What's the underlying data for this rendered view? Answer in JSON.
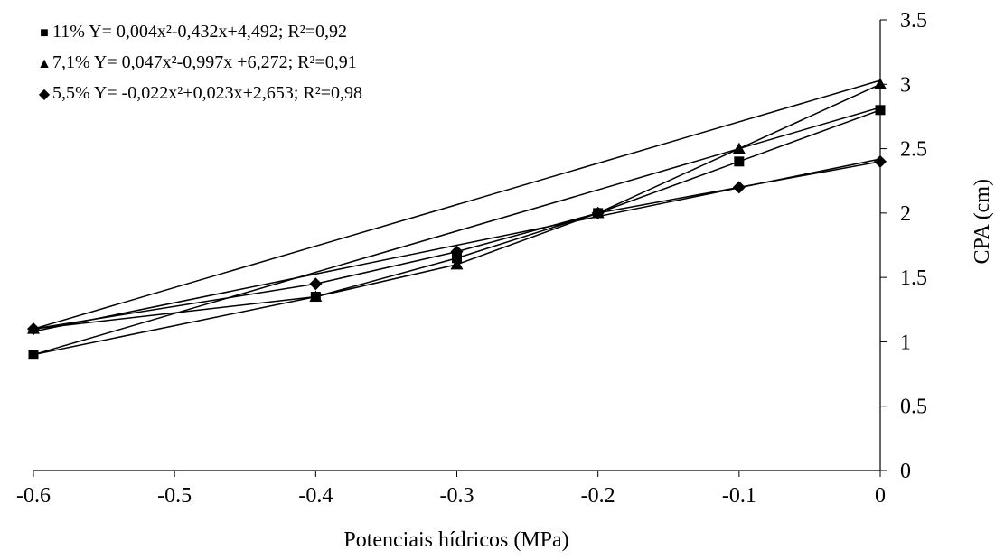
{
  "chart_data": {
    "type": "line",
    "x": [
      -0.6,
      -0.4,
      -0.3,
      -0.2,
      -0.1,
      0
    ],
    "x_ticks": [
      "-0.6",
      "-0.5",
      "-0.4",
      "-0.3",
      "-0.2",
      "-0.1",
      "0"
    ],
    "y_ticks": [
      "0",
      "0.5",
      "1",
      "1.5",
      "2",
      "2.5",
      "3",
      "3.5"
    ],
    "xlim": [
      -0.6,
      0
    ],
    "ylim": [
      0,
      3.5
    ],
    "xlabel": "Potenciais hídricos (MPa)",
    "ylabel": "CPA (cm)",
    "grid": false,
    "legend_position": "top-left",
    "series": [
      {
        "name": "11%",
        "marker": "square",
        "values": [
          0.9,
          1.35,
          1.65,
          2.0,
          2.4,
          2.8
        ],
        "equation": "11% Y= 0,004x²-0,432x+4,492; R²=0,92"
      },
      {
        "name": "7,1%",
        "marker": "triangle",
        "values": [
          1.1,
          1.35,
          1.6,
          2.0,
          2.5,
          3.0
        ],
        "equation": "7,1% Y= 0,047x²-0,997x +6,272; R²=0,91"
      },
      {
        "name": "5,5%",
        "marker": "diamond",
        "values": [
          1.1,
          1.45,
          1.7,
          2.0,
          2.2,
          2.4
        ],
        "equation": "5,5% Y= -0,022x²+0,023x+2,653; R²=0,98"
      }
    ],
    "trend": [
      {
        "x_start": -0.6,
        "y_start": 0.9,
        "x_end": 0,
        "y_end": 2.82
      },
      {
        "x_start": -0.6,
        "y_start": 1.1,
        "x_end": 0,
        "y_end": 3.03
      },
      {
        "x_start": -0.6,
        "y_start": 1.08,
        "x_end": 0,
        "y_end": 2.42
      }
    ]
  }
}
